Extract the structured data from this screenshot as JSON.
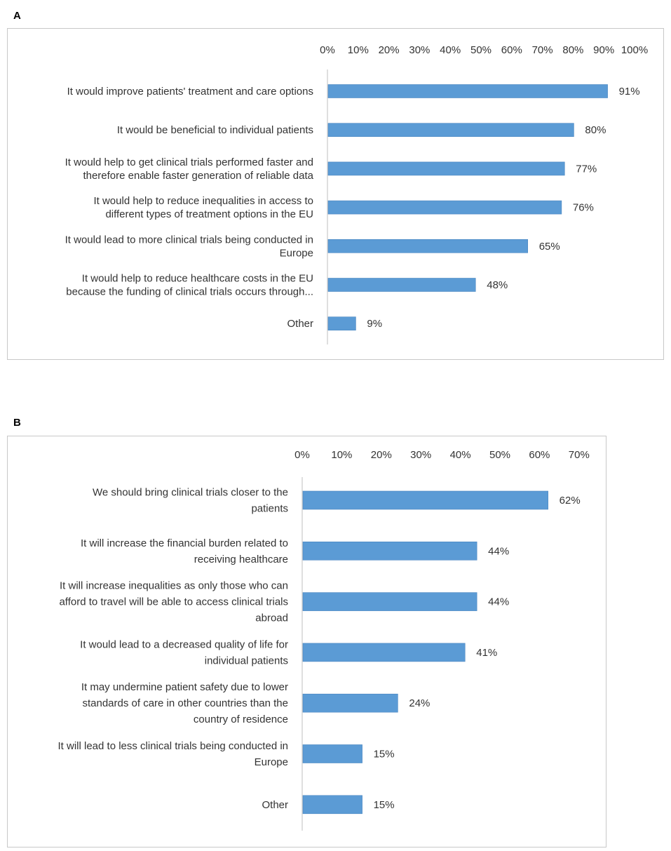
{
  "panels": [
    {
      "letter": "A"
    },
    {
      "letter": "B"
    }
  ],
  "chart_data": [
    {
      "type": "bar",
      "orientation": "horizontal",
      "panel": "A",
      "title": "",
      "xlabel": "",
      "ylabel": "",
      "xlim": [
        0,
        100
      ],
      "ticks": [
        "0%",
        "10%",
        "20%",
        "30%",
        "40%",
        "50%",
        "60%",
        "70%",
        "80%",
        "90%",
        "100%"
      ],
      "categories": [
        [
          "It would improve patients' treatment and care options"
        ],
        [
          "It would be beneficial to individual patients"
        ],
        [
          "It would help to get clinical trials performed faster and",
          "therefore enable faster generation of reliable data"
        ],
        [
          "It would help to reduce inequalities in access to",
          "different types of treatment options in the EU"
        ],
        [
          "It would lead to more clinical trials being conducted in",
          "Europe"
        ],
        [
          "It would help to reduce healthcare costs in the EU",
          "because the funding of clinical trials occurs through..."
        ],
        [
          "Other"
        ]
      ],
      "values": [
        91,
        80,
        77,
        76,
        65,
        48,
        9
      ],
      "labels": [
        "91%",
        "80%",
        "77%",
        "76%",
        "65%",
        "48%",
        "9%"
      ],
      "bar_color": "#5b9bd5",
      "grid": false
    },
    {
      "type": "bar",
      "orientation": "horizontal",
      "panel": "B",
      "title": "",
      "xlabel": "",
      "ylabel": "",
      "xlim": [
        0,
        70
      ],
      "ticks": [
        "0%",
        "10%",
        "20%",
        "30%",
        "40%",
        "50%",
        "60%",
        "70%"
      ],
      "categories": [
        [
          "We should bring clinical trials closer to the",
          "patients"
        ],
        [
          "It will increase the financial burden related to",
          "receiving healthcare"
        ],
        [
          "It will increase inequalities as only those who can",
          "afford to travel will be able to access clinical trials",
          "abroad"
        ],
        [
          "It would lead to a decreased quality of life for",
          "individual patients"
        ],
        [
          "It may undermine patient safety due to lower",
          "standards of care in other countries than the",
          "country of residence"
        ],
        [
          "It will lead to less clinical trials being conducted in",
          "Europe"
        ],
        [
          "Other"
        ]
      ],
      "values": [
        62,
        44,
        44,
        41,
        24,
        15,
        15
      ],
      "labels": [
        "62%",
        "44%",
        "44%",
        "41%",
        "24%",
        "15%",
        "15%"
      ],
      "bar_color": "#5b9bd5",
      "grid": false
    }
  ]
}
